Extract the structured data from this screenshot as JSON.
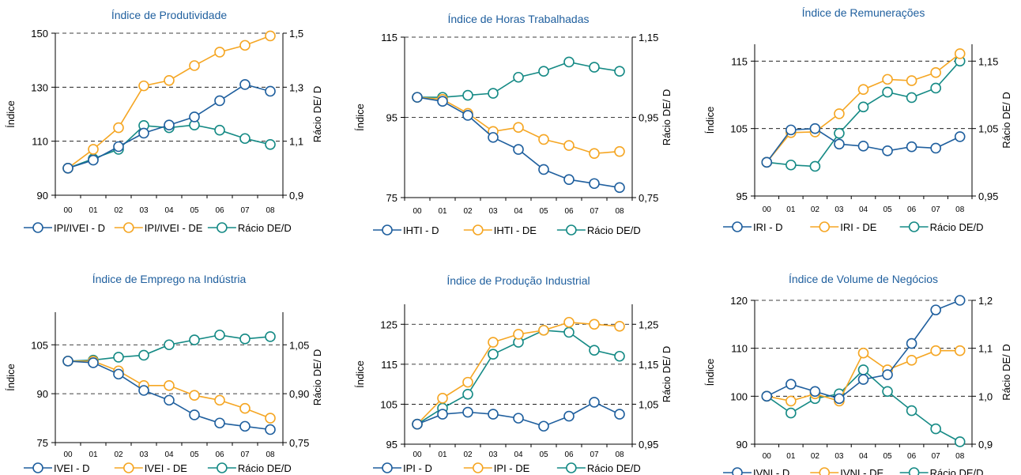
{
  "colors": {
    "d": "#1f5f9e",
    "de": "#f5a623",
    "ratio": "#158a85",
    "title": "#1f5f9e",
    "grid": "#000000"
  },
  "chart_data": [
    {
      "type": "line",
      "title": "Índice de Produtividade",
      "ylabel": "Índice",
      "y2label": "Rácio DE/ D",
      "categories": [
        "00",
        "01",
        "02",
        "03",
        "04",
        "05",
        "06",
        "07",
        "08"
      ],
      "ylim": [
        90,
        150
      ],
      "yticks": [
        "90",
        "110",
        "130",
        "150"
      ],
      "y2lim": [
        0.9,
        1.5
      ],
      "y2ticks": [
        "0,9",
        "1,1",
        "1,3",
        "1,5"
      ],
      "grid": true,
      "legend_position": "bottom",
      "series": [
        {
          "name": "IPI/IVEI - D",
          "axis": "left",
          "color_key": "d",
          "values": [
            100,
            103,
            108,
            113,
            116,
            119,
            125,
            131,
            128.5
          ]
        },
        {
          "name": "IPI/IVEI - DE",
          "axis": "left",
          "color_key": "de",
          "values": [
            100,
            107,
            115,
            130.5,
            132.5,
            138,
            143,
            145.5,
            149
          ]
        },
        {
          "name": "Rácio DE/D",
          "axis": "right",
          "color_key": "ratio",
          "values": [
            1.0,
            1.035,
            1.07,
            1.158,
            1.15,
            1.16,
            1.141,
            1.11,
            1.088
          ]
        }
      ]
    },
    {
      "type": "line",
      "title": "Índice de Horas Trabalhadas",
      "ylabel": "Índice",
      "y2label": "Rácio DE/ D",
      "categories": [
        "00",
        "01",
        "02",
        "03",
        "04",
        "05",
        "06",
        "07",
        "08"
      ],
      "ylim": [
        75,
        115
      ],
      "yticks": [
        "75",
        "95",
        "115"
      ],
      "y2lim": [
        0.75,
        1.15
      ],
      "y2ticks": [
        "0,75",
        "0,95",
        "1,15"
      ],
      "grid": true,
      "legend_position": "bottom",
      "series": [
        {
          "name": "IHTI - D",
          "axis": "left",
          "color_key": "d",
          "values": [
            100,
            99,
            95.5,
            90,
            87,
            82,
            79.5,
            78.5,
            77.5
          ]
        },
        {
          "name": "IHTI - DE",
          "axis": "left",
          "color_key": "de",
          "values": [
            100,
            99.5,
            96,
            91.5,
            92.5,
            89.5,
            88,
            86,
            86.5
          ]
        },
        {
          "name": "Rácio DE/D",
          "axis": "right",
          "color_key": "ratio",
          "values": [
            1.0,
            1.0,
            1.005,
            1.01,
            1.05,
            1.065,
            1.088,
            1.075,
            1.065
          ]
        }
      ]
    },
    {
      "type": "line",
      "title": "Índice de Remunerações",
      "ylabel": "Índice",
      "y2label": "Rácio DE/ D",
      "categories": [
        "00",
        "01",
        "02",
        "03",
        "04",
        "05",
        "06",
        "07",
        "08"
      ],
      "ylim": [
        95,
        117.5
      ],
      "yticks": [
        "95",
        "105",
        "115"
      ],
      "y2lim": [
        0.95,
        1.175
      ],
      "y2ticks": [
        "0,95",
        "1,05",
        "1,15"
      ],
      "grid": true,
      "legend_position": "bottom",
      "series": [
        {
          "name": "IRI - D",
          "axis": "left",
          "color_key": "d",
          "values": [
            100,
            104.8,
            105,
            102.7,
            102.4,
            101.7,
            102.3,
            102.1,
            103.8
          ]
        },
        {
          "name": "IRI - DE",
          "axis": "left",
          "color_key": "de",
          "values": [
            100,
            104.4,
            104.5,
            107.2,
            110.8,
            112.3,
            112.1,
            113.3,
            116.1
          ]
        },
        {
          "name": "Rácio DE/D",
          "axis": "right",
          "color_key": "ratio",
          "values": [
            1.0,
            0.996,
            0.994,
            1.043,
            1.082,
            1.104,
            1.096,
            1.11,
            1.15
          ]
        }
      ]
    },
    {
      "type": "line",
      "title": "Índice de Emprego na Indústria",
      "ylabel": "Índice",
      "y2label": "Rácio DE/ D",
      "categories": [
        "00",
        "01",
        "02",
        "03",
        "04",
        "05",
        "06",
        "07",
        "08"
      ],
      "ylim": [
        75,
        115
      ],
      "yticks": [
        "75",
        "90",
        "105"
      ],
      "y2lim": [
        0.75,
        1.15
      ],
      "y2ticks": [
        "0,75",
        "0,90",
        "1,05"
      ],
      "grid": true,
      "legend_position": "bottom",
      "series": [
        {
          "name": "IVEI - D",
          "axis": "left",
          "color_key": "d",
          "values": [
            100,
            99.5,
            96,
            91,
            88,
            83.5,
            81,
            80,
            79
          ]
        },
        {
          "name": "IVEI - DE",
          "axis": "left",
          "color_key": "de",
          "values": [
            100,
            100,
            97,
            92.5,
            92.5,
            89.5,
            88,
            85.5,
            82.5
          ]
        },
        {
          "name": "Rácio DE/D",
          "axis": "right",
          "color_key": "ratio",
          "values": [
            1.0,
            1.003,
            1.012,
            1.018,
            1.05,
            1.065,
            1.08,
            1.068,
            1.075
          ]
        }
      ]
    },
    {
      "type": "line",
      "title": "Índice de Produção Industrial",
      "ylabel": "Índice",
      "y2label": "Rácio DE/ D",
      "categories": [
        "00",
        "01",
        "02",
        "03",
        "04",
        "05",
        "06",
        "07",
        "08"
      ],
      "ylim": [
        95,
        130
      ],
      "yticks": [
        "95",
        "105",
        "115",
        "125"
      ],
      "y2lim": [
        0.95,
        1.3
      ],
      "y2ticks": [
        "0,95",
        "1,05",
        "1,15",
        "1,25"
      ],
      "grid": true,
      "legend_position": "bottom",
      "series": [
        {
          "name": "IPI - D",
          "axis": "left",
          "color_key": "d",
          "values": [
            100,
            102.5,
            103,
            102.5,
            101.5,
            99.5,
            102,
            105.5,
            102.5
          ]
        },
        {
          "name": "IPI - DE",
          "axis": "left",
          "color_key": "de",
          "values": [
            100,
            106.5,
            110.5,
            120.5,
            122.5,
            123.5,
            125.5,
            125,
            124.5
          ]
        },
        {
          "name": "Rácio DE/D",
          "axis": "right",
          "color_key": "ratio",
          "values": [
            1.0,
            1.04,
            1.075,
            1.175,
            1.205,
            1.235,
            1.23,
            1.185,
            1.17
          ]
        }
      ]
    },
    {
      "type": "line",
      "title": "Índice de Volume de Negócios",
      "ylabel": "Índice",
      "y2label": "Rácio DE/ D",
      "categories": [
        "00",
        "01",
        "02",
        "03",
        "04",
        "05",
        "06",
        "07",
        "08"
      ],
      "ylim": [
        90,
        120
      ],
      "yticks": [
        "90",
        "100",
        "110",
        "120"
      ],
      "y2lim": [
        0.9,
        1.2
      ],
      "y2ticks": [
        "0,9",
        "1,0",
        "1,1",
        "1,2"
      ],
      "grid": true,
      "legend_position": "bottom",
      "series": [
        {
          "name": "IVNI - D",
          "axis": "left",
          "color_key": "d",
          "values": [
            100,
            102.5,
            101,
            99.5,
            103.5,
            104.5,
            111,
            118,
            120
          ]
        },
        {
          "name": "IVNI - DE",
          "axis": "left",
          "color_key": "de",
          "values": [
            100,
            99,
            100.5,
            99,
            109,
            105.5,
            107.5,
            109.5,
            109.5
          ]
        },
        {
          "name": "Rácio DE/D",
          "axis": "right",
          "color_key": "ratio",
          "values": [
            1.0,
            0.965,
            0.995,
            1.005,
            1.055,
            1.01,
            0.97,
            0.932,
            0.905
          ]
        }
      ]
    }
  ]
}
